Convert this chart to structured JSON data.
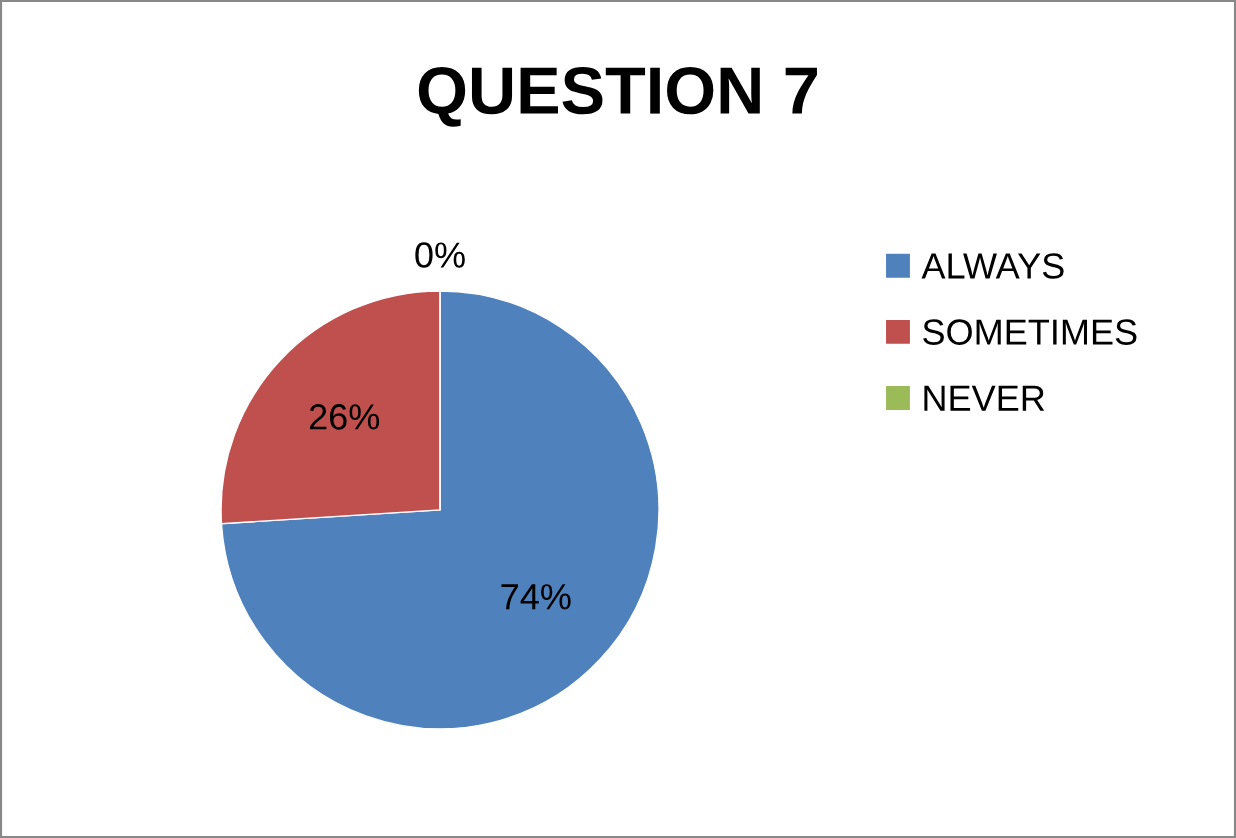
{
  "chart_data": {
    "type": "pie",
    "title": "QUESTION 7",
    "categories": [
      "ALWAYS",
      "SOMETIMES",
      "NEVER"
    ],
    "values": [
      74,
      26,
      0
    ],
    "colors": [
      "#4f81bd",
      "#c0504d",
      "#9bbb59"
    ],
    "value_labels": [
      "74%",
      "26%",
      "0%"
    ],
    "legend": "right"
  }
}
